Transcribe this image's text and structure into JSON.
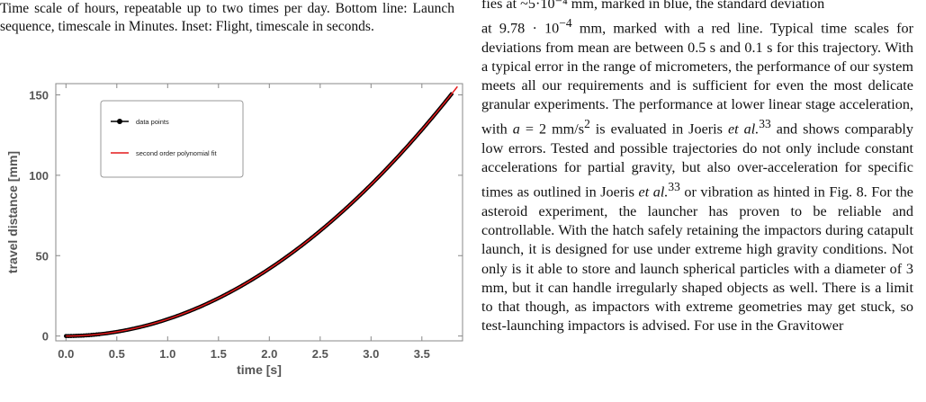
{
  "caption": {
    "text": "Time scale of hours, repeatable up to two times per day. Bottom line: Launch sequence, timescale in Minutes. Inset: Flight, timescale in seconds."
  },
  "body": {
    "top_fragment": "fies at ~5·10⁻⁴ mm, marked in blue, the standard deviation",
    "p1": "at 9.78 · 10",
    "p1_exp": "−4",
    "p2": " mm, marked with a red line. Typical time scales for deviations from mean are between 0.5 s and 0.1 s for this trajectory. With a typical error in the range of micrometers, the performance of our system meets all our requirements and is sufficient for even the most delicate granular experiments. The performance at lower linear stage acceleration, with ",
    "p2_var": "a",
    "p3": " = 2 mm/s",
    "p3_exp": "2",
    "p4": " is evaluated in Joeris ",
    "etal1": "et al.",
    "ref1": "33",
    "p5": " and shows comparably low errors. Tested and possible trajectories do not only include constant accelerations for partial gravity, but also over-acceleration for specific times as outlined in Joeris ",
    "etal2": "et al.",
    "ref2": "33",
    "p6": " or vibration as hinted in Fig. 8. For the asteroid experiment, the launcher has proven to be reliable and controllable. With the hatch safely retaining the impactors during catapult launch, it is designed for use under extreme high gravity conditions. Not only is it able to store and launch spherical particles with a diameter of 3 mm, but it can handle irregularly shaped objects as well. There is a limit to that though, as impactors with extreme geometries may get stuck, so test-launching impactors is advised. For use in the Gravitower"
  },
  "chart_data": {
    "type": "line",
    "xlabel": "time [s]",
    "ylabel": "travel distance [mm]",
    "xlim": [
      -0.1,
      3.9
    ],
    "ylim": [
      -3,
      157
    ],
    "x_ticks": [
      "0.0",
      "0.5",
      "1.0",
      "1.5",
      "2.0",
      "2.5",
      "3.0",
      "3.5"
    ],
    "y_ticks": [
      "0",
      "50",
      "100",
      "150"
    ],
    "x_tick_values": [
      0,
      0.5,
      1.0,
      1.5,
      2.0,
      2.5,
      3.0,
      3.5
    ],
    "y_tick_values": [
      0,
      50,
      100,
      150
    ],
    "grid": false,
    "legend_placement": "top-left",
    "series": [
      {
        "name": "data points",
        "color": "#000000",
        "style": "markers",
        "x_range": [
          0,
          3.8
        ],
        "equation": "y = 10.47·x²"
      },
      {
        "name": "second order polynomial fit",
        "color": "#e41a1c",
        "style": "line",
        "x_range": [
          0,
          3.85
        ],
        "equation": "y = 10.47·x²"
      }
    ]
  }
}
